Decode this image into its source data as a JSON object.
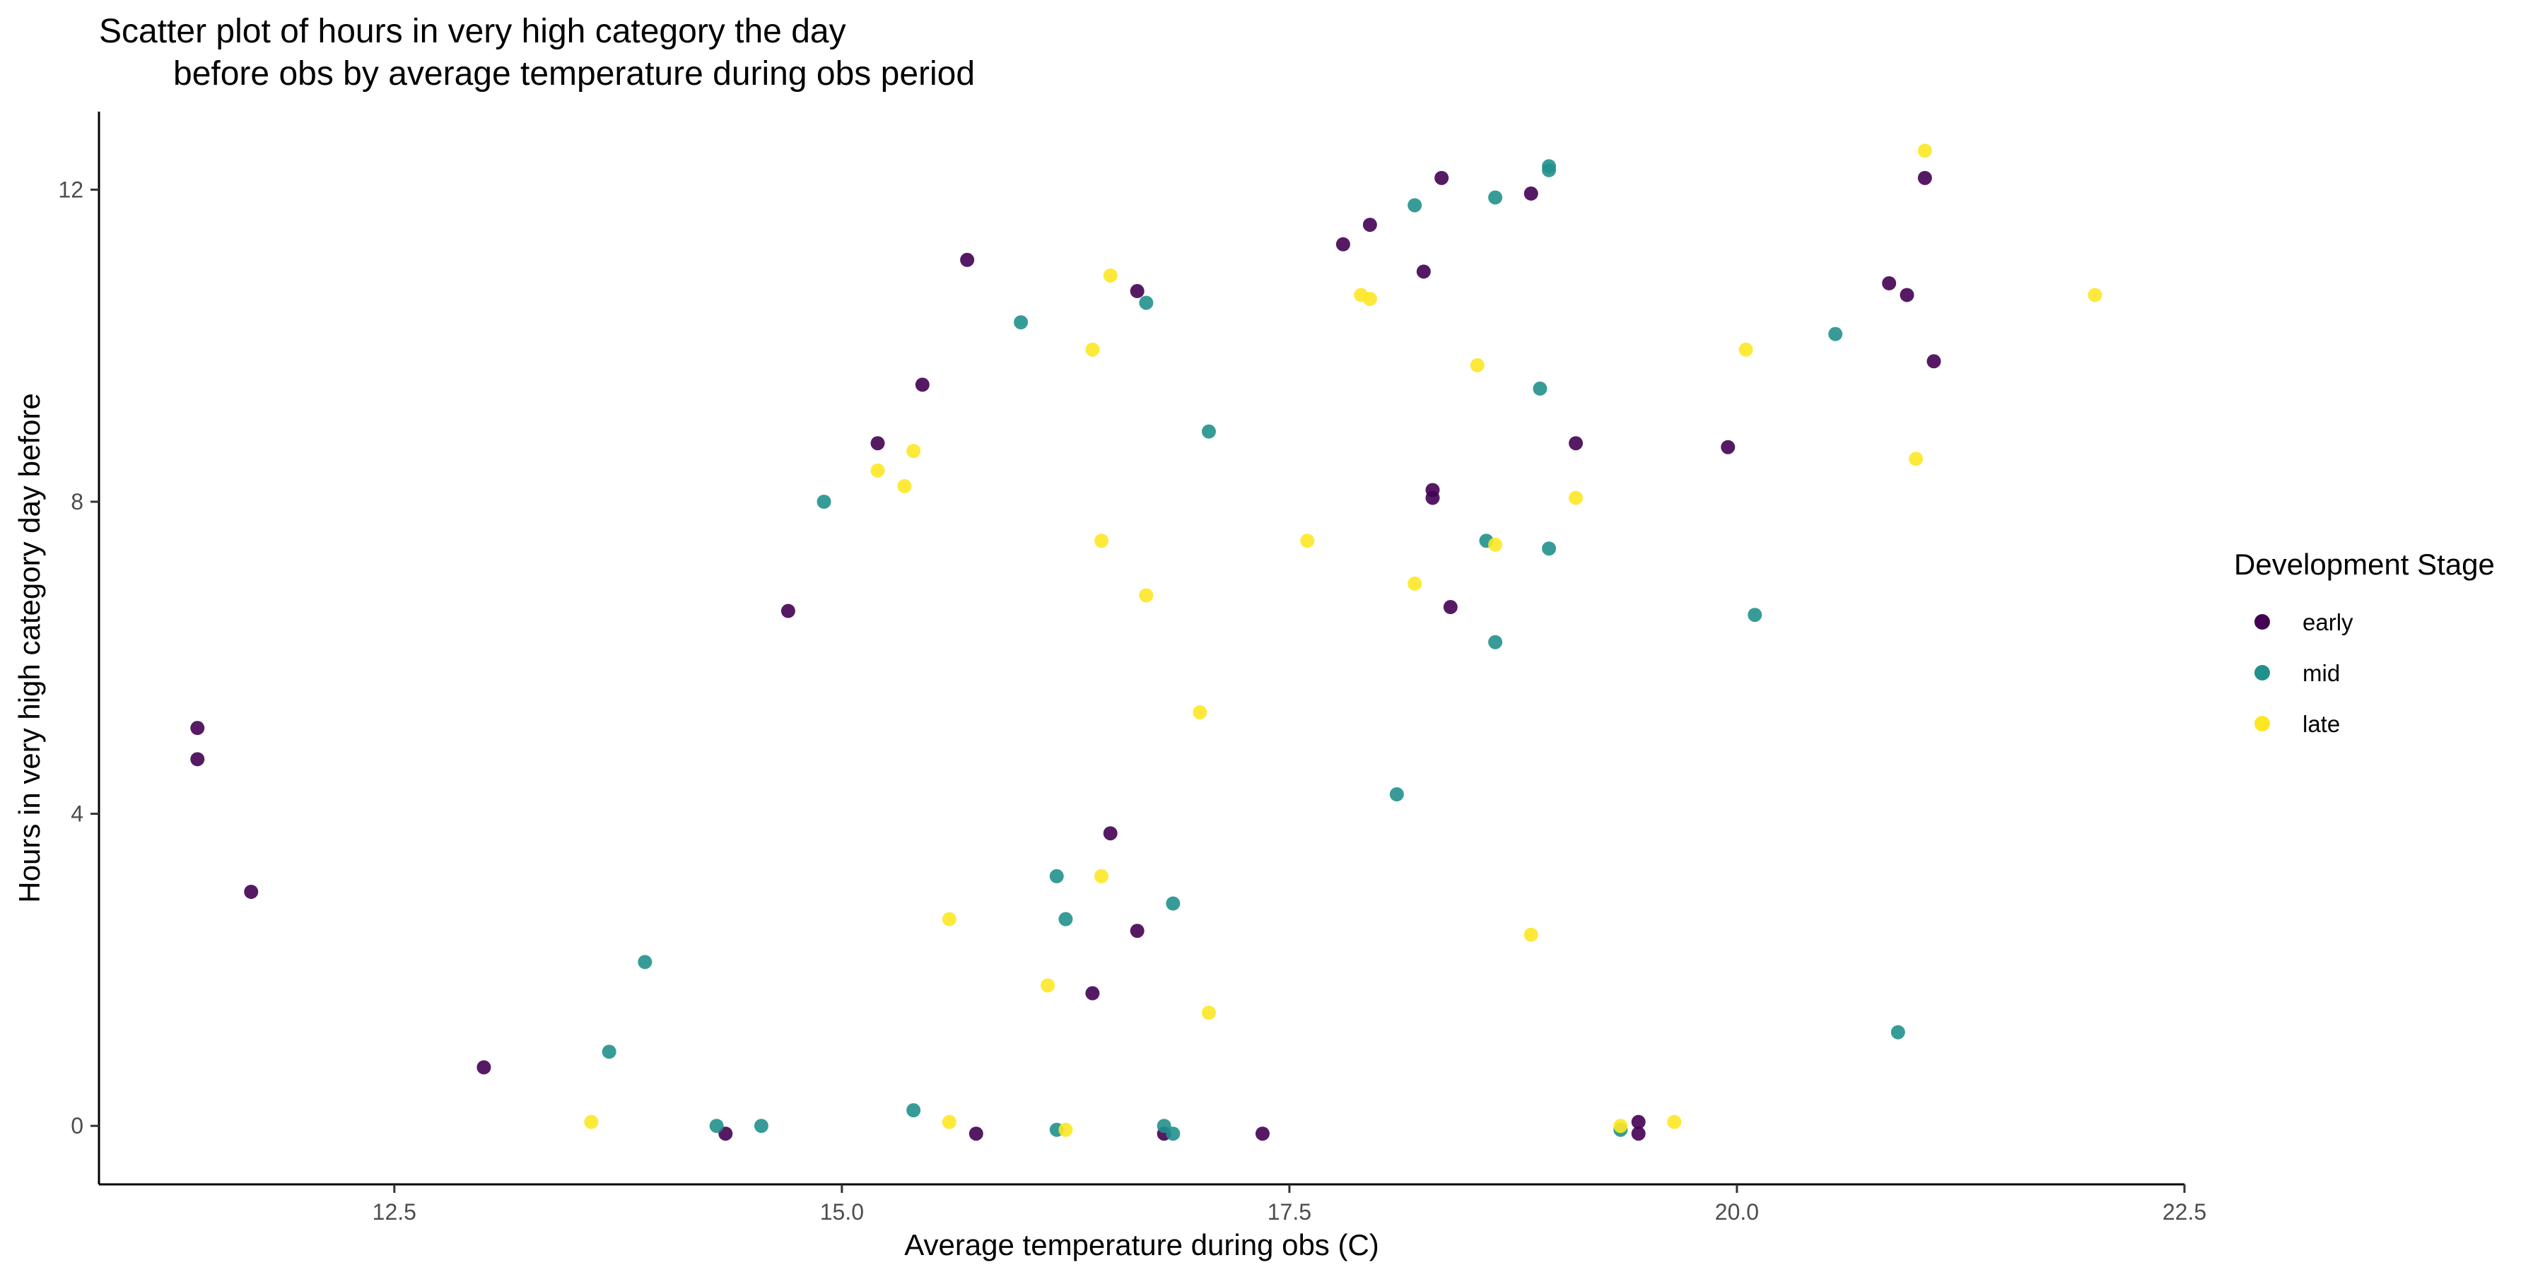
{
  "chart_data": {
    "type": "scatter",
    "title_lines": [
      "Scatter plot of hours in very high category the day",
      "before obs by average temperature during obs period"
    ],
    "xlabel": "Average temperature during obs (C)",
    "ylabel": "Hours in very high category day before",
    "xlim": [
      10.85,
      22.5
    ],
    "ylim": [
      -0.75,
      13.0
    ],
    "x_ticks": [
      12.5,
      15.0,
      17.5,
      20.0,
      22.5
    ],
    "x_tick_labels": [
      "12.5",
      "15.0",
      "17.5",
      "20.0",
      "22.5"
    ],
    "y_ticks": [
      0,
      4,
      8,
      12
    ],
    "y_tick_labels": [
      "0",
      "4",
      "8",
      "12"
    ],
    "grid": false,
    "legend": {
      "title": "Development Stage",
      "position": "right"
    },
    "series": [
      {
        "name": "early",
        "color": "#440154",
        "points": [
          [
            11.4,
            5.1
          ],
          [
            11.4,
            4.7
          ],
          [
            11.7,
            3.0
          ],
          [
            13.0,
            0.75
          ],
          [
            14.35,
            -0.1
          ],
          [
            14.7,
            6.6
          ],
          [
            15.2,
            8.75
          ],
          [
            15.45,
            9.5
          ],
          [
            15.7,
            11.1
          ],
          [
            15.75,
            -0.1
          ],
          [
            16.4,
            1.7
          ],
          [
            16.5,
            3.75
          ],
          [
            16.65,
            10.7
          ],
          [
            16.65,
            2.5
          ],
          [
            16.8,
            -0.1
          ],
          [
            17.35,
            -0.1
          ],
          [
            17.8,
            11.3
          ],
          [
            17.95,
            11.55
          ],
          [
            18.25,
            10.95
          ],
          [
            18.3,
            8.15
          ],
          [
            18.3,
            8.05
          ],
          [
            18.35,
            12.15
          ],
          [
            18.4,
            6.65
          ],
          [
            18.85,
            11.95
          ],
          [
            19.1,
            8.75
          ],
          [
            19.45,
            0.05
          ],
          [
            19.45,
            -0.1
          ],
          [
            19.95,
            8.7
          ],
          [
            20.85,
            10.8
          ],
          [
            20.95,
            10.65
          ],
          [
            21.05,
            12.15
          ],
          [
            21.1,
            9.8
          ]
        ]
      },
      {
        "name": "mid",
        "color": "#21918c",
        "points": [
          [
            13.7,
            0.95
          ],
          [
            13.9,
            2.1
          ],
          [
            14.3,
            0.0
          ],
          [
            14.55,
            0.0
          ],
          [
            14.9,
            8.0
          ],
          [
            15.4,
            0.2
          ],
          [
            16.0,
            10.3
          ],
          [
            16.2,
            3.2
          ],
          [
            16.25,
            2.65
          ],
          [
            16.2,
            -0.05
          ],
          [
            16.7,
            10.55
          ],
          [
            16.8,
            0.0
          ],
          [
            16.85,
            2.85
          ],
          [
            16.85,
            -0.1
          ],
          [
            17.05,
            8.9
          ],
          [
            18.1,
            4.25
          ],
          [
            18.2,
            11.8
          ],
          [
            18.6,
            7.5
          ],
          [
            18.65,
            6.2
          ],
          [
            18.65,
            11.9
          ],
          [
            18.9,
            9.45
          ],
          [
            18.95,
            12.3
          ],
          [
            18.95,
            12.25
          ],
          [
            18.95,
            7.4
          ],
          [
            19.35,
            -0.05
          ],
          [
            20.1,
            6.55
          ],
          [
            20.55,
            10.15
          ],
          [
            20.9,
            1.2
          ]
        ]
      },
      {
        "name": "late",
        "color": "#fde725",
        "points": [
          [
            13.6,
            0.05
          ],
          [
            15.2,
            8.4
          ],
          [
            15.35,
            8.2
          ],
          [
            15.4,
            8.65
          ],
          [
            15.6,
            2.65
          ],
          [
            15.6,
            0.05
          ],
          [
            16.15,
            1.8
          ],
          [
            16.25,
            -0.05
          ],
          [
            16.4,
            9.95
          ],
          [
            16.45,
            7.5
          ],
          [
            16.45,
            3.2
          ],
          [
            16.5,
            10.9
          ],
          [
            16.7,
            6.8
          ],
          [
            17.0,
            5.3
          ],
          [
            17.05,
            1.45
          ],
          [
            17.6,
            7.5
          ],
          [
            17.9,
            10.65
          ],
          [
            17.95,
            10.6
          ],
          [
            18.2,
            6.95
          ],
          [
            18.55,
            9.75
          ],
          [
            18.65,
            7.45
          ],
          [
            18.85,
            2.45
          ],
          [
            19.1,
            8.05
          ],
          [
            19.35,
            0.0
          ],
          [
            19.65,
            0.05
          ],
          [
            20.05,
            9.95
          ],
          [
            21.0,
            8.55
          ],
          [
            21.05,
            12.5
          ],
          [
            22.0,
            10.65
          ]
        ]
      }
    ]
  }
}
